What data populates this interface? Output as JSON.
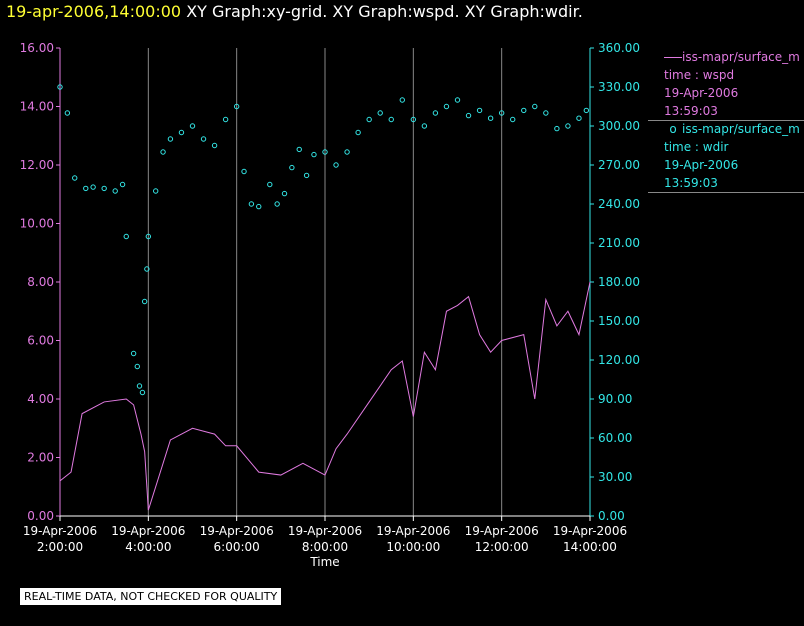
{
  "header": {
    "timestamp": "19-apr-2006,14:00:00",
    "graphs": "XY Graph:xy-grid.  XY Graph:wspd.  XY Graph:wdir."
  },
  "legend": {
    "wspd": {
      "name": "iss-mapr/surface_m",
      "var": "time : wspd",
      "date": "19-Apr-2006",
      "time": "13:59:03"
    },
    "wdir": {
      "name": "iss-mapr/surface_m",
      "var": "time : wdir",
      "date": "19-Apr-2006",
      "time": "13:59:03"
    }
  },
  "disclaimer": "REAL-TIME DATA, NOT CHECKED FOR QUALITY",
  "colors": {
    "wspd": "#e07ae0",
    "wdir": "#33e6e6",
    "grid": "#888888",
    "text": "#ffffff"
  },
  "chart_data": {
    "type": "line",
    "xlabel": "Time",
    "xlim": [
      "19-Apr-2006 2:00:00",
      "19-Apr-2006 14:00:00"
    ],
    "x_ticks": [
      {
        "date": "19-Apr-2006",
        "time": "2:00:00"
      },
      {
        "date": "19-Apr-2006",
        "time": "4:00:00"
      },
      {
        "date": "19-Apr-2006",
        "time": "6:00:00"
      },
      {
        "date": "19-Apr-2006",
        "time": "8:00:00"
      },
      {
        "date": "19-Apr-2006",
        "time": "10:00:00"
      },
      {
        "date": "19-Apr-2006",
        "time": "12:00:00"
      },
      {
        "date": "19-Apr-2006",
        "time": "14:00:00"
      }
    ],
    "y_left": {
      "ylim": [
        0,
        16
      ],
      "ticks": [
        "0.00",
        "2.00",
        "4.00",
        "6.00",
        "8.00",
        "10.00",
        "12.00",
        "14.00",
        "16.00"
      ]
    },
    "y_right": {
      "ylim": [
        0,
        360
      ],
      "ticks": [
        "0.00",
        "30.00",
        "60.00",
        "90.00",
        "120.00",
        "150.00",
        "180.00",
        "210.00",
        "240.00",
        "270.00",
        "300.00",
        "330.00",
        "360.00"
      ]
    },
    "grid": "vertical",
    "series": [
      {
        "name": "wspd",
        "axis": "left",
        "style": "line",
        "x": [
          "2:00",
          "2:15",
          "2:30",
          "3:00",
          "3:30",
          "3:40",
          "3:50",
          "3:55",
          "4:00",
          "4:30",
          "5:00",
          "5:30",
          "5:45",
          "6:00",
          "6:30",
          "7:00",
          "7:30",
          "8:00",
          "8:15",
          "8:30",
          "9:00",
          "9:30",
          "9:45",
          "10:00",
          "10:15",
          "10:30",
          "10:45",
          "11:00",
          "11:15",
          "11:30",
          "11:45",
          "12:00",
          "12:30",
          "12:45",
          "13:00",
          "13:15",
          "13:30",
          "13:45",
          "14:00"
        ],
        "values": [
          1.2,
          1.5,
          3.5,
          3.9,
          4.0,
          3.8,
          2.8,
          2.2,
          0.2,
          2.6,
          3.0,
          2.8,
          2.4,
          2.4,
          1.5,
          1.4,
          1.8,
          1.4,
          2.3,
          2.8,
          3.9,
          5.0,
          5.3,
          3.4,
          5.6,
          5.0,
          7.0,
          7.2,
          7.5,
          6.2,
          5.6,
          6.0,
          6.2,
          4.0,
          7.4,
          6.5,
          7.0,
          6.2,
          8.0
        ]
      },
      {
        "name": "wdir",
        "axis": "right",
        "style": "markers",
        "x": [
          "2:00",
          "2:10",
          "2:20",
          "2:35",
          "2:45",
          "3:00",
          "3:15",
          "3:25",
          "3:30",
          "3:40",
          "3:45",
          "3:48",
          "3:52",
          "3:55",
          "3:58",
          "4:00",
          "4:10",
          "4:20",
          "4:30",
          "4:45",
          "5:00",
          "5:15",
          "5:30",
          "5:45",
          "6:00",
          "6:10",
          "6:20",
          "6:30",
          "6:45",
          "6:55",
          "7:05",
          "7:15",
          "7:25",
          "7:35",
          "7:45",
          "8:00",
          "8:15",
          "8:30",
          "8:45",
          "9:00",
          "9:15",
          "9:30",
          "9:45",
          "10:00",
          "10:15",
          "10:30",
          "10:45",
          "11:00",
          "11:15",
          "11:30",
          "11:45",
          "12:00",
          "12:15",
          "12:30",
          "12:45",
          "13:00",
          "13:15",
          "13:30",
          "13:45",
          "13:55"
        ],
        "values": [
          330,
          310,
          260,
          252,
          253,
          252,
          250,
          255,
          215,
          125,
          115,
          100,
          95,
          165,
          190,
          215,
          250,
          280,
          290,
          295,
          300,
          290,
          285,
          305,
          315,
          265,
          240,
          238,
          255,
          240,
          248,
          268,
          282,
          262,
          278,
          280,
          270,
          280,
          295,
          305,
          310,
          305,
          320,
          305,
          300,
          310,
          315,
          320,
          308,
          312,
          306,
          310,
          305,
          312,
          315,
          310,
          298,
          300,
          306,
          312
        ]
      }
    ]
  }
}
